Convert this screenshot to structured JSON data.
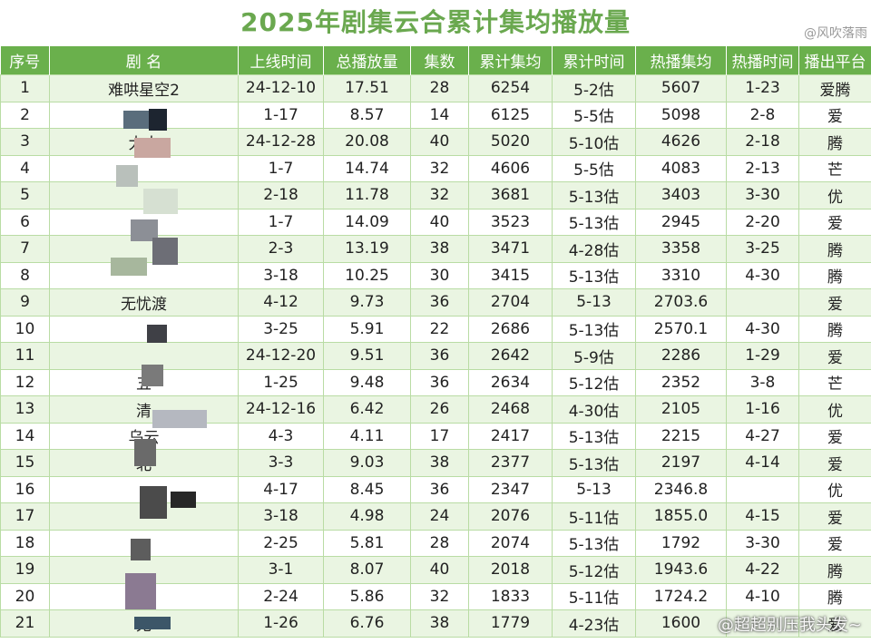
{
  "title": "2025年剧集云合累计集均播放量",
  "source_mark": "@风吹落雨",
  "bottom_watermark": "@超超别压我头发~",
  "columns": [
    "序号",
    "剧 名",
    "上线时间",
    "总播放量",
    "集数",
    "累计集均",
    "累计时间",
    "热播集均",
    "热播时间",
    "播出平台"
  ],
  "rows": [
    [
      "1",
      "难哄星空2",
      "24-12-10",
      "17.51",
      "28",
      "6254",
      "5-2估",
      "5607",
      "1-23",
      "爱腾"
    ],
    [
      "2",
      "",
      "1-17",
      "8.57",
      "14",
      "6125",
      "5-5估",
      "5098",
      "2-8",
      "爱"
    ],
    [
      "3",
      "大人",
      "24-12-28",
      "20.08",
      "40",
      "5020",
      "5-10估",
      "4626",
      "2-18",
      "腾"
    ],
    [
      "4",
      "",
      "1-7",
      "14.74",
      "32",
      "4606",
      "5-5估",
      "4083",
      "2-13",
      "芒"
    ],
    [
      "5",
      "",
      "2-18",
      "11.78",
      "32",
      "3681",
      "5-13估",
      "3403",
      "3-30",
      "优"
    ],
    [
      "6",
      "",
      "1-7",
      "14.09",
      "40",
      "3523",
      "5-13估",
      "2945",
      "2-20",
      "爱"
    ],
    [
      "7",
      "",
      "2-3",
      "13.19",
      "38",
      "3471",
      "4-28估",
      "3358",
      "3-25",
      "腾"
    ],
    [
      "8",
      "",
      "3-18",
      "10.25",
      "30",
      "3415",
      "5-13估",
      "3310",
      "4-30",
      "腾"
    ],
    [
      "9",
      "无忧渡",
      "4-12",
      "9.73",
      "36",
      "2704",
      "5-13",
      "2703.6",
      "",
      "爱"
    ],
    [
      "10",
      "",
      "3-25",
      "5.91",
      "22",
      "2686",
      "5-13估",
      "2570.1",
      "4-30",
      "腾"
    ],
    [
      "11",
      "",
      "24-12-20",
      "9.51",
      "36",
      "2642",
      "5-9估",
      "2286",
      "1-29",
      "爱"
    ],
    [
      "12",
      "五",
      "1-25",
      "9.48",
      "36",
      "2634",
      "5-12估",
      "2352",
      "3-8",
      "芒"
    ],
    [
      "13",
      "清",
      "24-12-16",
      "6.42",
      "26",
      "2468",
      "4-30估",
      "2105",
      "1-16",
      "优"
    ],
    [
      "14",
      "乌云",
      "4-3",
      "4.11",
      "17",
      "2417",
      "5-13估",
      "2215",
      "4-27",
      "爱"
    ],
    [
      "15",
      "北",
      "3-3",
      "9.03",
      "38",
      "2377",
      "5-13估",
      "2197",
      "4-14",
      "爱"
    ],
    [
      "16",
      "",
      "4-17",
      "8.45",
      "36",
      "2347",
      "5-13",
      "2346.8",
      "",
      "优"
    ],
    [
      "17",
      "",
      "3-18",
      "4.98",
      "24",
      "2076",
      "5-11估",
      "1855.0",
      "4-15",
      "爱"
    ],
    [
      "18",
      "",
      "2-25",
      "5.81",
      "28",
      "2074",
      "5-13估",
      "1792",
      "3-30",
      "爱"
    ],
    [
      "19",
      "",
      "3-1",
      "8.07",
      "40",
      "2018",
      "5-12估",
      "1943.6",
      "4-22",
      "腾"
    ],
    [
      "20",
      "",
      "2-24",
      "5.86",
      "32",
      "1833",
      "5-11估",
      "1724.2",
      "4-10",
      "腾"
    ],
    [
      "21",
      "无",
      "1-26",
      "6.76",
      "38",
      "1779",
      "4-23估",
      "1600",
      "",
      "爱"
    ]
  ],
  "colors": {
    "accent": "#6ab04c",
    "title": "#6aa84f",
    "row_alt": "#eaf5e2",
    "grid": "#b9dca4"
  }
}
